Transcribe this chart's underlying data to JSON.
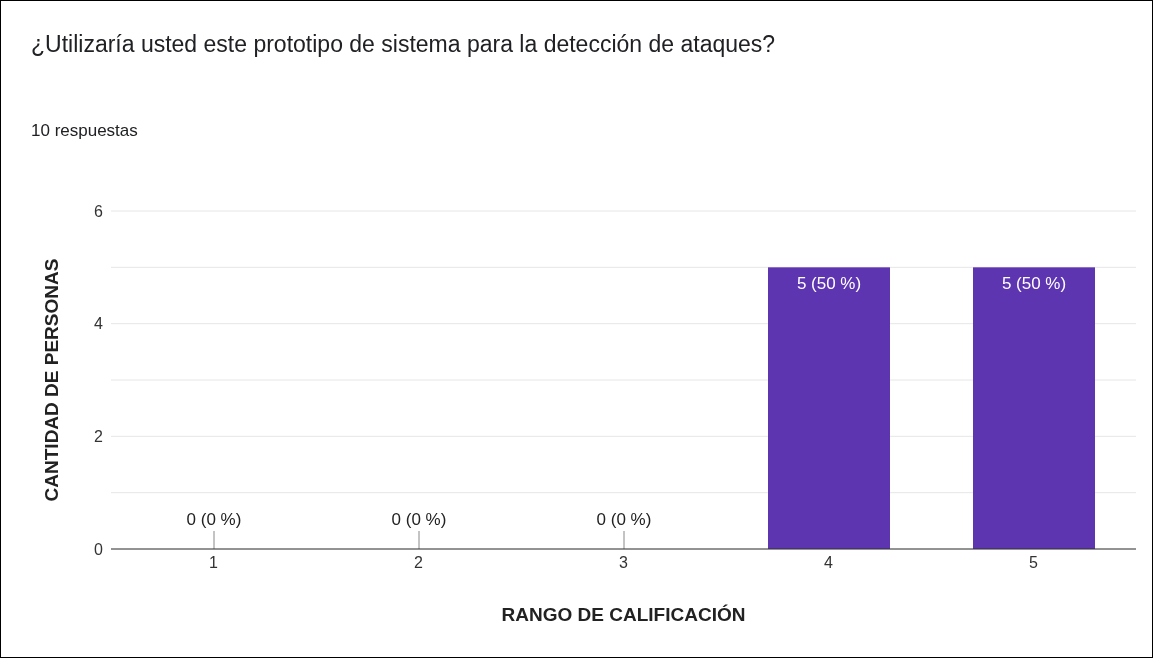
{
  "chart_data": {
    "type": "bar",
    "title": "¿Utilizaría usted este prototipo de sistema para la detección de ataques?",
    "subtitle": "10 respuestas",
    "xlabel": "RANGO DE CALIFICACIÓN",
    "ylabel": "CANTIDAD DE PERSONAS",
    "categories": [
      "1",
      "2",
      "3",
      "4",
      "5"
    ],
    "values": [
      0,
      0,
      0,
      5,
      5
    ],
    "color": "#5e35b1",
    "value_labels": [
      "0 (0 %)",
      "0 (0 %)",
      "0 (0 %)",
      "5 (50 %)",
      "5 (50 %)"
    ],
    "ylim": [
      0,
      6
    ],
    "yticks": [
      0,
      {
        "value": 1,
        "label": null
      },
      2,
      {
        "value": 3,
        "label": null
      },
      4,
      {
        "value": 5,
        "label": null
      },
      6
    ],
    "grid": "y",
    "legend": false
  }
}
